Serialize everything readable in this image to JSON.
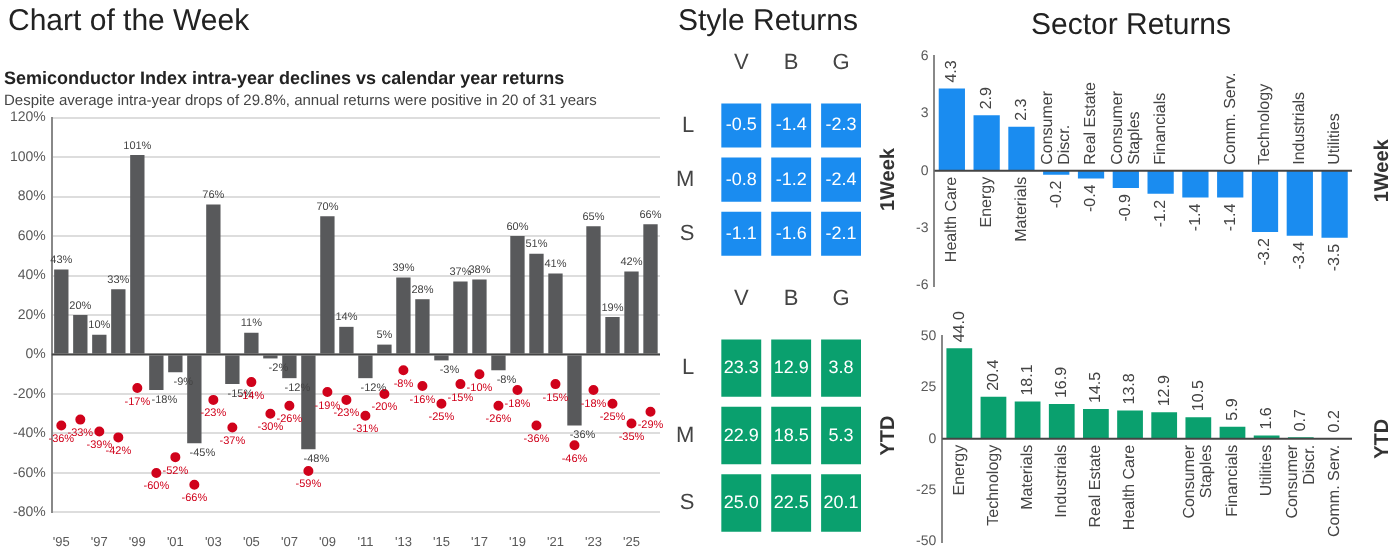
{
  "chart_data": [
    {
      "type": "bar",
      "annotations": [
        "Chart of the Week"
      ],
      "title": "Semiconductor Index intra-year declines vs calendar year returns",
      "subtitle": "Despite average intra-year drops of 29.8%, annual returns were positive in 20 of 31 years",
      "categories": [
        "'95",
        null,
        "'97",
        null,
        "'99",
        null,
        "'01",
        null,
        "'03",
        null,
        "'05",
        null,
        "'07",
        null,
        "'09",
        null,
        "'11",
        null,
        "'13",
        null,
        "'15",
        null,
        "'17",
        null,
        "'19",
        null,
        "'21",
        null,
        "'23",
        null,
        "'25",
        null
      ],
      "series": [
        {
          "type": "bar",
          "color": "#58595b",
          "values": [
            43,
            20,
            10,
            33,
            101,
            -18,
            -9,
            -45,
            76,
            -15,
            11,
            -2,
            -12,
            -48,
            70,
            14,
            -12,
            5,
            39,
            28,
            -3,
            37,
            38,
            -8,
            60,
            51,
            41,
            -36,
            65,
            19,
            42,
            66
          ],
          "value_labels": [
            "43%",
            "20%",
            "10%",
            "33%",
            "101%",
            "-18%",
            "-9%",
            "-45%",
            "76%",
            "-15%",
            "11%",
            "-2%",
            "-12%",
            "-48%",
            "70%",
            "14%",
            "-12%",
            "5%",
            "39%",
            "28%",
            "-3%",
            "37%",
            "38%",
            "-8%",
            "60%",
            "51%",
            "41%",
            "-36%",
            "65%",
            "19%",
            "42%",
            "66%"
          ]
        },
        {
          "type": "scatter",
          "color": "#d0021b",
          "values": [
            -36,
            -33,
            -39,
            -42,
            -17,
            -60,
            -52,
            -66,
            -23,
            -37,
            -14,
            -30,
            -26,
            -59,
            -19,
            -23,
            -31,
            -20,
            -8,
            -16,
            -25,
            -15,
            -10,
            -26,
            -18,
            -36,
            -15,
            -46,
            -18,
            -25,
            -35,
            -29
          ],
          "value_labels": [
            "-36%",
            "-33%",
            "-39%",
            "-42%",
            "-17%",
            "-60%",
            "-52%",
            "-66%",
            "-23%",
            "-37%",
            "-14%",
            "-30%",
            "-26%",
            "-59%",
            "-19%",
            "-23%",
            "-31%",
            "-20%",
            "-8%",
            "-16%",
            "-25%",
            "-15%",
            "-10%",
            "-26%",
            "-18%",
            "-36%",
            "-15%",
            "-46%",
            "-18%",
            "-25%",
            "-35%",
            "-29%"
          ]
        }
      ],
      "ylim": [
        -80,
        120
      ],
      "yticks": [
        {
          "value": -80,
          "label": "-80%"
        },
        {
          "value": -60,
          "label": "-60%"
        },
        {
          "value": -40,
          "label": "-40%"
        },
        {
          "value": -20,
          "label": "-20%"
        },
        {
          "value": 0,
          "label": "0%"
        },
        {
          "value": 20,
          "label": "20%"
        },
        {
          "value": 40,
          "label": "40%"
        },
        {
          "value": 60,
          "label": "60%"
        },
        {
          "value": 80,
          "label": "80%"
        },
        {
          "value": 100,
          "label": "100%"
        },
        {
          "value": 120,
          "label": "120%"
        }
      ],
      "grid": "y",
      "marker": "circle"
    },
    {
      "type": "heatmap",
      "title": "Style Returns",
      "ylabel": "1Week",
      "color": "#1a8cf0",
      "categories": [
        "V",
        "B",
        "G"
      ],
      "y_categories": [
        "L",
        "M",
        "S"
      ],
      "cells": [
        [
          -0.5,
          -1.4,
          -2.3
        ],
        [
          -0.8,
          -1.2,
          -2.4
        ],
        [
          -1.1,
          -1.6,
          -2.1
        ]
      ],
      "cell_labels": [
        [
          "-0.5",
          "-1.4",
          "-2.3"
        ],
        [
          "-0.8",
          "-1.2",
          "-2.4"
        ],
        [
          "-1.1",
          "-1.6",
          "-2.1"
        ]
      ]
    },
    {
      "type": "heatmap",
      "ylabel": "YTD",
      "color": "#0aa06e",
      "categories": [
        "V",
        "B",
        "G"
      ],
      "y_categories": [
        "L",
        "M",
        "S"
      ],
      "cells": [
        [
          23.3,
          12.9,
          3.8
        ],
        [
          22.9,
          18.5,
          5.3
        ],
        [
          25.0,
          22.5,
          20.1
        ]
      ],
      "cell_labels": [
        [
          "23.3",
          "12.9",
          "3.8"
        ],
        [
          "22.9",
          "18.5",
          "5.3"
        ],
        [
          "25.0",
          "22.5",
          "20.1"
        ]
      ]
    },
    {
      "type": "bar",
      "title": "Sector Returns",
      "ylabel": "1Week",
      "color": "#1a8cf0",
      "categories": [
        "Health Care",
        "Energy",
        "Materials",
        "Consumer Discr.",
        "Real Estate",
        "Consumer Staples",
        "Financials",
        null,
        "Comm. Serv.",
        "Technology",
        "Industrials",
        "Utilities"
      ],
      "values": [
        4.3,
        2.9,
        2.3,
        -0.2,
        -0.4,
        -0.9,
        -1.2,
        -1.4,
        -1.4,
        -3.2,
        -3.4,
        -3.5
      ],
      "data_labels": true,
      "ylim": [
        -6,
        6
      ],
      "yticks": [
        -6,
        -3,
        0,
        3,
        6
      ]
    },
    {
      "type": "bar",
      "ylabel": "YTD",
      "color": "#0aa06e",
      "categories": [
        "Energy",
        "Technology",
        "Materials",
        "Industrials",
        "Real Estate",
        "Health Care",
        null,
        "Consumer Staples",
        "Financials",
        "Utilities",
        "Consumer Discr.",
        "Comm. Serv."
      ],
      "values": [
        44.0,
        20.4,
        18.1,
        16.9,
        14.5,
        13.8,
        12.9,
        10.5,
        5.9,
        1.6,
        0.7,
        0.2
      ],
      "value_labels": [
        "44.0",
        "20.4",
        "18.1",
        "16.9",
        "14.5",
        "13.8",
        "12.9",
        "10.5",
        "5.9",
        "1.6",
        "0.7",
        "0.2"
      ],
      "ylim": [
        -50,
        50
      ],
      "yticks": [
        -50,
        -25,
        0,
        25,
        50
      ]
    }
  ]
}
